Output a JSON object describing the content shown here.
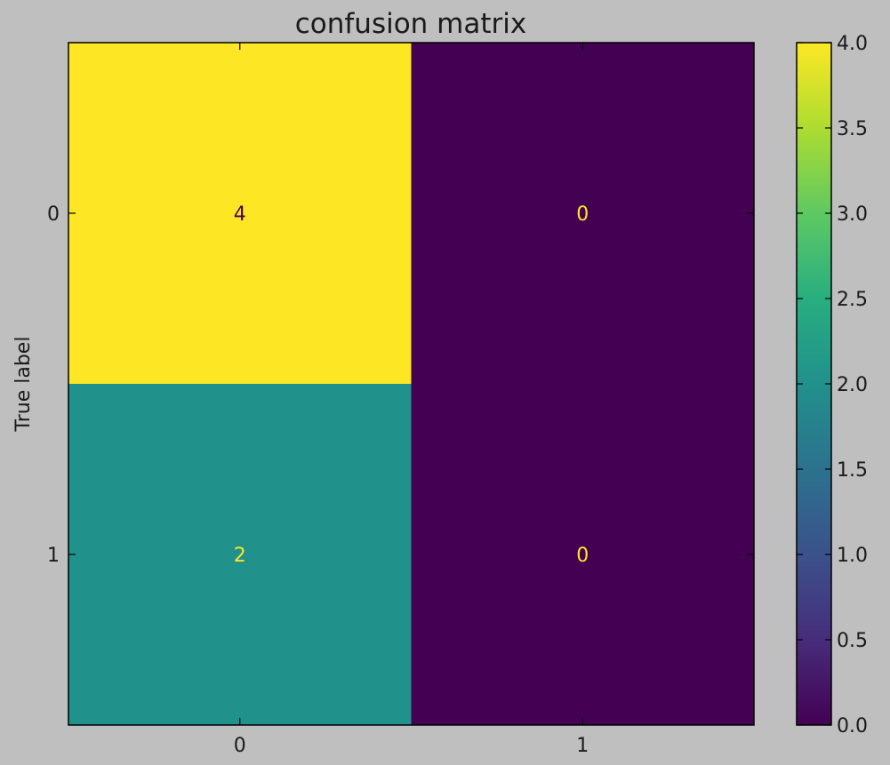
{
  "chart_data": {
    "type": "heatmap",
    "title": "confusion matrix",
    "ylabel": "True label",
    "xlabel": "",
    "x_tick_labels": [
      "0",
      "1"
    ],
    "y_tick_labels": [
      "0",
      "1"
    ],
    "matrix": [
      [
        4,
        0
      ],
      [
        2,
        0
      ]
    ],
    "cell_labels": [
      [
        "4",
        "0"
      ],
      [
        "2",
        "0"
      ]
    ],
    "colormap": "viridis",
    "vmin": 0.0,
    "vmax": 4.0,
    "colorbar_ticks": [
      0.0,
      0.5,
      1.0,
      1.5,
      2.0,
      2.5,
      3.0,
      3.5,
      4.0
    ],
    "colorbar_tick_labels": [
      "0.0",
      "0.5",
      "1.0",
      "1.5",
      "2.0",
      "2.5",
      "3.0",
      "3.5",
      "4.0"
    ],
    "grid": false
  },
  "colors": {
    "figure_background": "#bfbfbf",
    "axis_line": "#000000",
    "text": "#1a1a1a",
    "high_value_text": "#440154",
    "low_value_text": "#fde725"
  }
}
